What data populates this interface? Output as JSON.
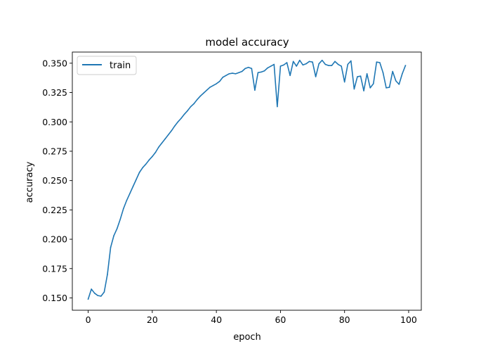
{
  "chart_data": {
    "type": "line",
    "title": "model accuracy",
    "xlabel": "epoch",
    "ylabel": "accuracy",
    "xlim": [
      -4.95,
      103.95
    ],
    "ylim": [
      0.1395,
      0.3595
    ],
    "xticks": [
      0,
      20,
      40,
      60,
      80,
      100
    ],
    "xtick_labels": [
      "0",
      "20",
      "40",
      "60",
      "80",
      "100"
    ],
    "yticks": [
      0.15,
      0.175,
      0.2,
      0.225,
      0.25,
      0.275,
      0.3,
      0.325,
      0.35
    ],
    "ytick_labels": [
      "0.150",
      "0.175",
      "0.200",
      "0.225",
      "0.250",
      "0.275",
      "0.300",
      "0.325",
      "0.350"
    ],
    "grid": false,
    "legend_position": "top-left",
    "series": [
      {
        "name": "train",
        "color": "#1f77b4",
        "x": [
          0,
          1,
          2,
          3,
          4,
          5,
          6,
          7,
          8,
          9,
          10,
          11,
          12,
          13,
          14,
          15,
          16,
          17,
          18,
          19,
          20,
          21,
          22,
          23,
          24,
          25,
          26,
          27,
          28,
          29,
          30,
          31,
          32,
          33,
          34,
          35,
          36,
          37,
          38,
          39,
          40,
          41,
          42,
          43,
          44,
          45,
          46,
          47,
          48,
          49,
          50,
          51,
          52,
          53,
          54,
          55,
          56,
          57,
          58,
          59,
          60,
          61,
          62,
          63,
          64,
          65,
          66,
          67,
          68,
          69,
          70,
          71,
          72,
          73,
          74,
          75,
          76,
          77,
          78,
          79,
          80,
          81,
          82,
          83,
          84,
          85,
          86,
          87,
          88,
          89,
          90,
          91,
          92,
          93,
          94,
          95,
          96,
          97,
          98,
          99
        ],
        "values": [
          0.149,
          0.1575,
          0.154,
          0.152,
          0.1515,
          0.155,
          0.17,
          0.193,
          0.203,
          0.209,
          0.217,
          0.226,
          0.233,
          0.239,
          0.245,
          0.251,
          0.257,
          0.261,
          0.264,
          0.2675,
          0.2705,
          0.274,
          0.2785,
          0.282,
          0.2855,
          0.289,
          0.2925,
          0.2965,
          0.3,
          0.303,
          0.3065,
          0.3095,
          0.313,
          0.3155,
          0.319,
          0.322,
          0.3245,
          0.327,
          0.3295,
          0.331,
          0.3325,
          0.3345,
          0.338,
          0.3395,
          0.341,
          0.3415,
          0.341,
          0.342,
          0.343,
          0.3455,
          0.3465,
          0.3455,
          0.327,
          0.342,
          0.3425,
          0.3435,
          0.346,
          0.3475,
          0.349,
          0.313,
          0.3475,
          0.3485,
          0.3505,
          0.3395,
          0.3515,
          0.3475,
          0.3525,
          0.3485,
          0.3495,
          0.3515,
          0.351,
          0.3385,
          0.3495,
          0.3525,
          0.349,
          0.348,
          0.348,
          0.3515,
          0.349,
          0.3475,
          0.334,
          0.349,
          0.352,
          0.328,
          0.3385,
          0.339,
          0.3265,
          0.341,
          0.329,
          0.3325,
          0.351,
          0.3505,
          0.342,
          0.329,
          0.3295,
          0.343,
          0.335,
          0.332,
          0.341,
          0.348
        ]
      }
    ]
  }
}
